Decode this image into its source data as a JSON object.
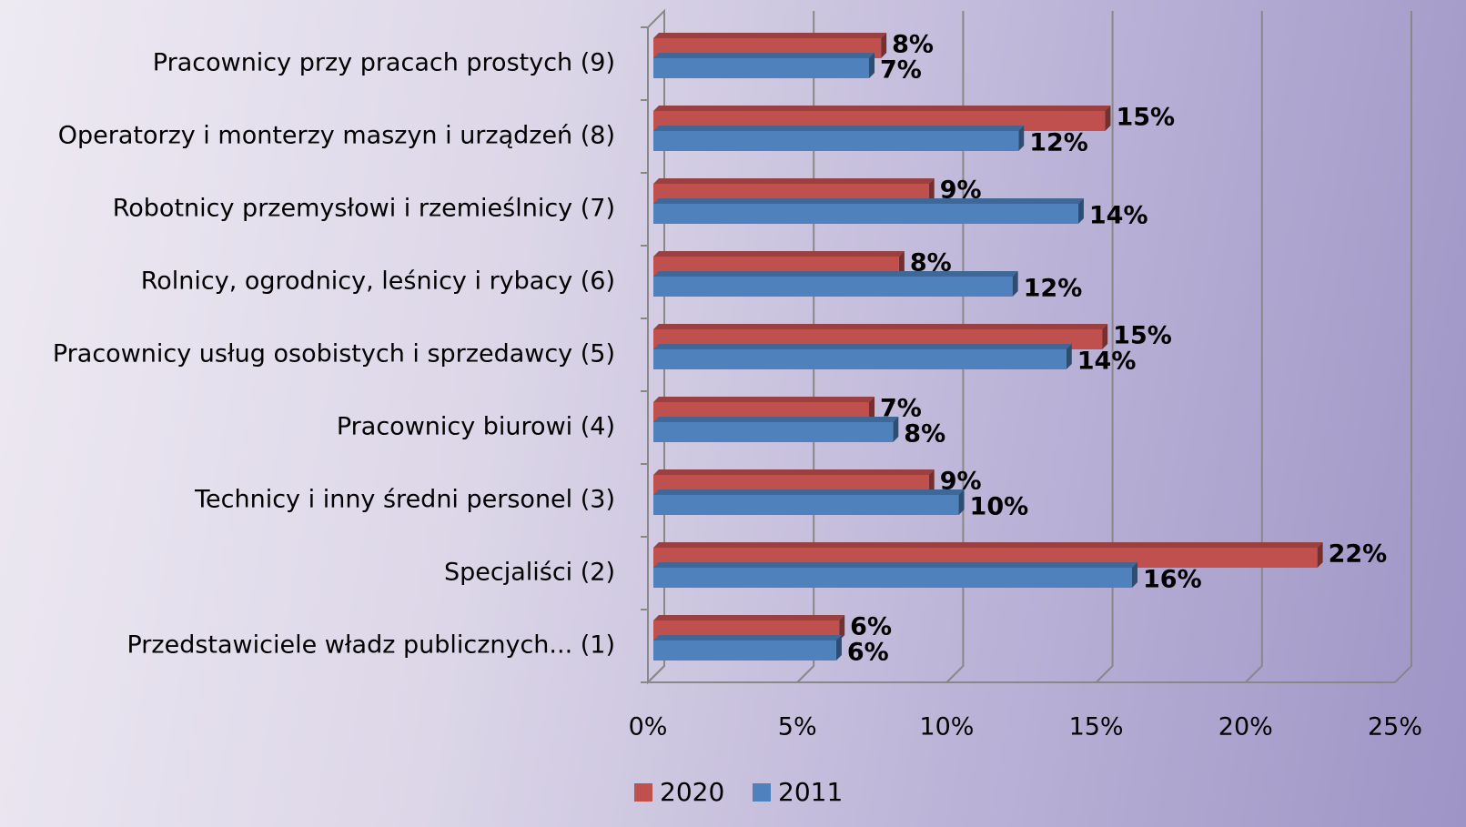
{
  "chart_data": {
    "type": "bar3d_horizontal",
    "categories": [
      "Pracownicy przy pracach prostych (9)",
      "Operatorzy i monterzy maszyn i urządzeń (8)",
      "Robotnicy przemysłowi i rzemieślnicy (7)",
      "Rolnicy, ogrodnicy, leśnicy i rybacy (6)",
      "Pracownicy usług osobistych i sprzedawcy (5)",
      "Pracownicy biurowi (4)",
      "Technicy i inny średni personel (3)",
      "Specjaliści (2)",
      "Przedstawiciele władz publicznych... (1)"
    ],
    "series": [
      {
        "name": "2020",
        "color": "#c0504d",
        "values": [
          7.8,
          15.3,
          9.4,
          8.4,
          15.2,
          7.4,
          9.4,
          22.4,
          6.4
        ],
        "value_labels": [
          "8%",
          "15%",
          "9%",
          "8%",
          "15%",
          "7%",
          "9%",
          "22%",
          "6%"
        ]
      },
      {
        "name": "2011",
        "color": "#4f81bd",
        "values": [
          7.4,
          12.4,
          14.4,
          12.2,
          14.0,
          8.2,
          10.4,
          16.2,
          6.3
        ],
        "value_labels": [
          "7%",
          "12%",
          "14%",
          "12%",
          "14%",
          "8%",
          "10%",
          "16%",
          "6%"
        ]
      }
    ],
    "xlim": [
      0,
      25
    ],
    "xticks": [
      {
        "value": 0,
        "label": "0%"
      },
      {
        "value": 5,
        "label": "5%"
      },
      {
        "value": 10,
        "label": "10%"
      },
      {
        "value": 15,
        "label": "15%"
      },
      {
        "value": 20,
        "label": "20%"
      },
      {
        "value": 25,
        "label": "25%"
      }
    ],
    "grid": true,
    "legend": "bottom"
  }
}
